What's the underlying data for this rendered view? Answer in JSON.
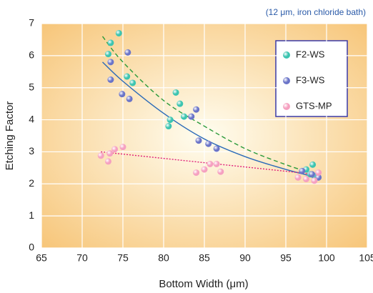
{
  "chart_data": {
    "type": "scatter",
    "subtitle": "(12 μm, iron chloride bath)",
    "x_label": "Bottom Width (μm)",
    "y_label": "Etching Factor",
    "xlim": [
      65,
      105
    ],
    "xticks": [
      65,
      70,
      75,
      80,
      85,
      90,
      95,
      100,
      105
    ],
    "ylim": [
      0,
      7
    ],
    "yticks": [
      0,
      1,
      2,
      3,
      4,
      5,
      6,
      7
    ],
    "grid": true,
    "legend": "upper right",
    "series": [
      {
        "name": "F2-WS",
        "color": "#3cc4b0",
        "x": [
          73.5,
          74.5,
          73.2,
          75.5,
          76.2,
          81.5,
          82,
          80.8,
          80.6,
          82.5,
          97.5,
          98.3,
          98,
          98.5
        ],
        "values": [
          6.4,
          6.7,
          6.05,
          5.35,
          5.15,
          4.85,
          4.5,
          4.0,
          3.8,
          4.1,
          2.45,
          2.6,
          2.3,
          2.25
        ]
      },
      {
        "name": "F3-WS",
        "color": "#6a74c8",
        "x": [
          73.5,
          75.6,
          73.5,
          74.9,
          75.8,
          83.4,
          84,
          84.3,
          85.5,
          86.5,
          97,
          98.2,
          99
        ],
        "values": [
          5.8,
          6.1,
          5.25,
          4.8,
          4.65,
          4.1,
          4.32,
          3.35,
          3.25,
          3.1,
          2.4,
          2.3,
          2.2
        ]
      },
      {
        "name": "GTS-MP",
        "color": "#f5a0c0",
        "x": [
          72.3,
          73.2,
          73.4,
          74,
          75,
          84,
          85,
          85.7,
          86.5,
          87,
          96.5,
          97.5,
          98.5,
          99
        ],
        "values": [
          2.88,
          2.7,
          2.95,
          3.08,
          3.15,
          2.35,
          2.45,
          2.62,
          2.62,
          2.38,
          2.2,
          2.15,
          2.1,
          2.35
        ]
      }
    ],
    "trendlines": [
      {
        "color": "#2a9a3a",
        "style": "dashed",
        "x": [
          72.5,
          75,
          80,
          85,
          90,
          95,
          98
        ],
        "values": [
          6.6,
          5.8,
          4.6,
          3.8,
          3.1,
          2.6,
          2.35
        ]
      },
      {
        "color": "#2a6ab8",
        "style": "solid",
        "x": [
          72.5,
          75,
          80,
          85,
          90,
          95,
          98
        ],
        "values": [
          5.8,
          5.2,
          4.2,
          3.4,
          2.85,
          2.45,
          2.25
        ]
      },
      {
        "color": "#e0207a",
        "style": "dotted",
        "x": [
          72.3,
          98.5
        ],
        "values": [
          3.0,
          2.3
        ]
      }
    ]
  }
}
